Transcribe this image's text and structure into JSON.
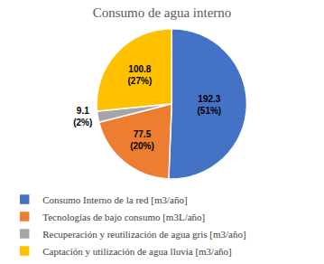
{
  "chart_data": {
    "type": "pie",
    "title": "Consumo de agua interno",
    "categories": [
      "Consumo Interno de la red [m3/año]",
      "Tecnologías de bajo consumo [m3L/año]",
      "Recuperación y reutilización de agua gris [m3/año]",
      "Captación y utilización de agua lluvia [m3/año]"
    ],
    "values": [
      192.3,
      77.5,
      9.1,
      100.8
    ],
    "value_labels": [
      "192.3\n(51%)",
      "77.5\n(20%)",
      "9.1\n(2%)",
      "100.8\n(27%)"
    ],
    "colors": [
      "#4472c4",
      "#ed7d31",
      "#a5a5a5",
      "#ffc000"
    ],
    "data_labels": true,
    "legend": "bottom"
  }
}
